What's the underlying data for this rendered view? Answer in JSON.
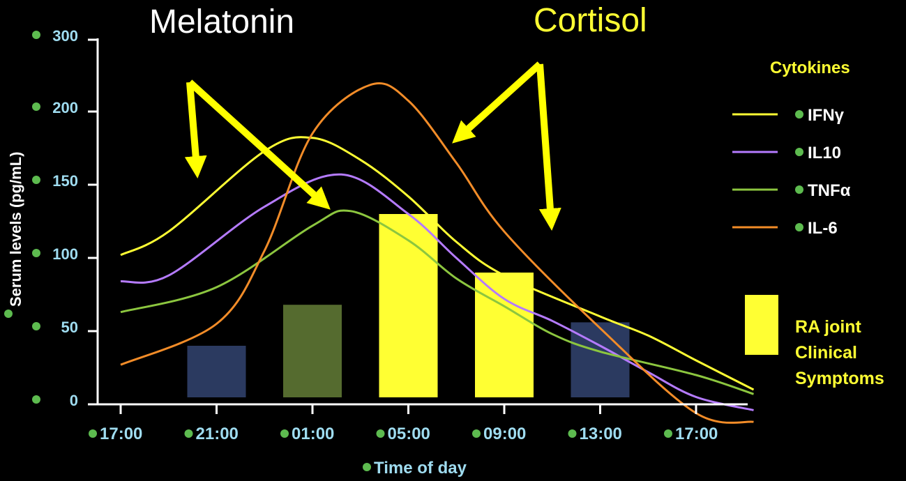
{
  "chart_data": {
    "type": "line",
    "annotations": {
      "melatonin": "Melatonin",
      "cortisol": "Cortisol",
      "legend_title": "Cytokines",
      "ra_label_lines": [
        "RA joint",
        "Clinical",
        "Symptoms"
      ]
    },
    "xlabel": "Time of day",
    "ylabel": "Serum levels (pg/mL)",
    "y_ticks": [
      "0",
      "50",
      "100",
      "150",
      "200",
      "300"
    ],
    "x_ticks": [
      "17:00",
      "21:00",
      "01:00",
      "05:00",
      "09:00",
      "13:00",
      "17:00"
    ],
    "series": [
      {
        "name": "IFNγ",
        "color": "#ffff33",
        "x": [
          0,
          0.5,
          1.5,
          2,
          2.5,
          3,
          3.5,
          4,
          5,
          5.5,
          6,
          6.6
        ],
        "y": [
          102,
          118,
          173,
          182,
          167,
          142,
          111,
          88,
          60,
          47,
          30,
          10
        ]
      },
      {
        "name": "IL10",
        "color": "#b57bff",
        "x": [
          0,
          0.5,
          1.5,
          2.3,
          3,
          3.5,
          4,
          4.5,
          5,
          5.5,
          6,
          6.6
        ],
        "y": [
          84,
          88,
          135,
          157,
          130,
          100,
          72,
          57,
          40,
          22,
          5,
          -4
        ]
      },
      {
        "name": "TNFα",
        "color": "#8cc63f",
        "x": [
          0,
          1,
          2,
          2.4,
          3,
          3.5,
          4,
          4.5,
          5,
          6,
          6.6
        ],
        "y": [
          63,
          80,
          122,
          132,
          112,
          86,
          67,
          48,
          36,
          20,
          7
        ]
      },
      {
        "name": "IL-6",
        "color": "#f28c28",
        "x": [
          0,
          1,
          1.5,
          2,
          2.6,
          3,
          3.5,
          4,
          5,
          6,
          6.6
        ],
        "y": [
          27,
          55,
          105,
          185,
          237,
          215,
          165,
          118,
          52,
          -6,
          -12
        ]
      }
    ],
    "bars": {
      "categories": [
        "21:00",
        "01:00",
        "05:00",
        "09:00",
        "13:00"
      ],
      "x": [
        1,
        2,
        3,
        4,
        5
      ],
      "values": [
        40,
        68,
        130,
        90,
        56
      ],
      "colors": [
        "#2b3a60",
        "#556b2f",
        "#ffff33",
        "#ffff33",
        "#2b3a60"
      ]
    }
  }
}
